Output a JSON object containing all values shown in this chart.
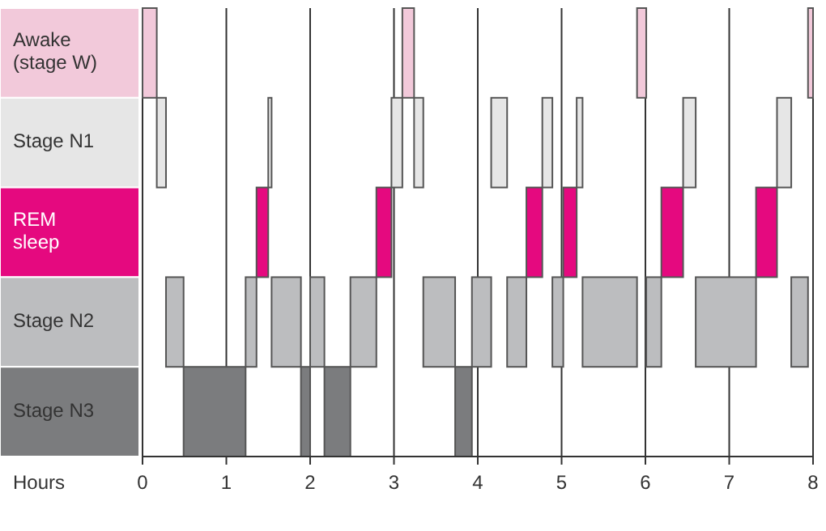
{
  "chart_data": {
    "type": "bar",
    "orientation": "horizontal",
    "xlabel": "Hours",
    "categories": [
      "Awake (stage W)",
      "Stage N1",
      "REM sleep",
      "Stage N2",
      "Stage N3"
    ],
    "series": [
      {
        "color": "#f2c9da",
        "values": [
          0.17,
          null,
          null,
          null,
          null
        ],
        "base": [
          0,
          null,
          null,
          null,
          null
        ]
      },
      {
        "color": "#e6e6e6",
        "values": [
          null,
          0.11,
          null,
          null,
          null
        ],
        "base": [
          null,
          0.17,
          null,
          null,
          null
        ]
      },
      {
        "color": "#bcbdbf",
        "values": [
          null,
          null,
          null,
          0.21,
          null
        ],
        "base": [
          null,
          null,
          null,
          0.28,
          null
        ]
      },
      {
        "color": "#7b7c7e",
        "values": [
          null,
          null,
          null,
          null,
          0.74
        ],
        "base": [
          null,
          null,
          null,
          null,
          0.49
        ]
      },
      {
        "color": "#bcbdbf",
        "values": [
          null,
          null,
          null,
          0.13,
          null
        ],
        "base": [
          null,
          null,
          null,
          1.23,
          null
        ]
      },
      {
        "color": "#e5097f",
        "values": [
          null,
          null,
          0.14,
          null,
          null
        ],
        "base": [
          null,
          null,
          1.36,
          null,
          null
        ]
      },
      {
        "color": "#e6e6e6",
        "values": [
          null,
          0.04,
          null,
          null,
          null
        ],
        "base": [
          null,
          1.5,
          null,
          null,
          null
        ]
      },
      {
        "color": "#bcbdbf",
        "values": [
          null,
          null,
          null,
          0.35,
          null
        ],
        "base": [
          null,
          null,
          null,
          1.54,
          null
        ]
      },
      {
        "color": "#7b7c7e",
        "values": [
          null,
          null,
          null,
          null,
          0.11
        ],
        "base": [
          null,
          null,
          null,
          null,
          1.89
        ]
      },
      {
        "color": "#bcbdbf",
        "values": [
          null,
          null,
          null,
          0.17,
          null
        ],
        "base": [
          null,
          null,
          null,
          2.0,
          null
        ]
      },
      {
        "color": "#7b7c7e",
        "values": [
          null,
          null,
          null,
          null,
          0.31
        ],
        "base": [
          null,
          null,
          null,
          null,
          2.17
        ]
      },
      {
        "color": "#bcbdbf",
        "values": [
          null,
          null,
          null,
          0.31,
          null
        ],
        "base": [
          null,
          null,
          null,
          2.48,
          null
        ]
      },
      {
        "color": "#e5097f",
        "values": [
          null,
          null,
          0.18,
          null,
          null
        ],
        "base": [
          null,
          null,
          2.79,
          null,
          null
        ]
      },
      {
        "color": "#e6e6e6",
        "values": [
          null,
          0.13,
          null,
          null,
          null
        ],
        "base": [
          null,
          2.97,
          null,
          null,
          null
        ]
      },
      {
        "color": "#f2c9da",
        "values": [
          0.14,
          null,
          null,
          null,
          null
        ],
        "base": [
          3.1,
          null,
          null,
          null,
          null
        ]
      },
      {
        "color": "#e6e6e6",
        "values": [
          null,
          0.11,
          null,
          null,
          null
        ],
        "base": [
          null,
          3.24,
          null,
          null,
          null
        ]
      },
      {
        "color": "#bcbdbf",
        "values": [
          null,
          null,
          null,
          0.38,
          null
        ],
        "base": [
          null,
          null,
          null,
          3.35,
          null
        ]
      },
      {
        "color": "#7b7c7e",
        "values": [
          null,
          null,
          null,
          null,
          0.2
        ],
        "base": [
          null,
          null,
          null,
          null,
          3.73
        ]
      },
      {
        "color": "#bcbdbf",
        "values": [
          null,
          null,
          null,
          0.23,
          null
        ],
        "base": [
          null,
          null,
          null,
          3.93,
          null
        ]
      },
      {
        "color": "#e6e6e6",
        "values": [
          null,
          0.19,
          null,
          null,
          null
        ],
        "base": [
          null,
          4.16,
          null,
          null,
          null
        ]
      },
      {
        "color": "#bcbdbf",
        "values": [
          null,
          null,
          null,
          0.23,
          null
        ],
        "base": [
          null,
          null,
          null,
          4.35,
          null
        ]
      },
      {
        "color": "#e5097f",
        "values": [
          null,
          null,
          0.19,
          null,
          null
        ],
        "base": [
          null,
          null,
          4.58,
          null,
          null
        ]
      },
      {
        "color": "#e6e6e6",
        "values": [
          null,
          0.12,
          null,
          null,
          null
        ],
        "base": [
          null,
          4.77,
          null,
          null,
          null
        ]
      },
      {
        "color": "#bcbdbf",
        "values": [
          null,
          null,
          null,
          0.13,
          null
        ],
        "base": [
          null,
          null,
          null,
          4.89,
          null
        ]
      },
      {
        "color": "#e5097f",
        "values": [
          null,
          null,
          0.16,
          null,
          null
        ],
        "base": [
          null,
          null,
          5.02,
          null,
          null
        ]
      },
      {
        "color": "#e6e6e6",
        "values": [
          null,
          0.07,
          null,
          null,
          null
        ],
        "base": [
          null,
          5.18,
          null,
          null,
          null
        ]
      },
      {
        "color": "#bcbdbf",
        "values": [
          null,
          null,
          null,
          0.65,
          null
        ],
        "base": [
          null,
          null,
          null,
          5.25,
          null
        ]
      },
      {
        "color": "#f2c9da",
        "values": [
          0.11,
          null,
          null,
          null,
          null
        ],
        "base": [
          5.9,
          null,
          null,
          null,
          null
        ]
      },
      {
        "color": "#bcbdbf",
        "values": [
          null,
          null,
          null,
          0.18,
          null
        ],
        "base": [
          null,
          null,
          null,
          6.01,
          null
        ]
      },
      {
        "color": "#e5097f",
        "values": [
          null,
          null,
          0.26,
          null,
          null
        ],
        "base": [
          null,
          null,
          6.19,
          null,
          null
        ]
      },
      {
        "color": "#e6e6e6",
        "values": [
          null,
          0.15,
          null,
          null,
          null
        ],
        "base": [
          null,
          6.45,
          null,
          null,
          null
        ]
      },
      {
        "color": "#bcbdbf",
        "values": [
          null,
          null,
          null,
          0.72,
          null
        ],
        "base": [
          null,
          null,
          null,
          6.6,
          null
        ]
      },
      {
        "color": "#e5097f",
        "values": [
          null,
          null,
          0.25,
          null,
          null
        ],
        "base": [
          null,
          null,
          7.32,
          null,
          null
        ]
      },
      {
        "color": "#e6e6e6",
        "values": [
          null,
          0.17,
          null,
          null,
          null
        ],
        "base": [
          null,
          7.57,
          null,
          null,
          null
        ]
      },
      {
        "color": "#bcbdbf",
        "values": [
          null,
          null,
          null,
          0.2,
          null
        ],
        "base": [
          null,
          null,
          null,
          7.74,
          null
        ]
      },
      {
        "color": "#f2c9da",
        "values": [
          0.06,
          null,
          null,
          null,
          null
        ],
        "base": [
          7.94,
          null,
          null,
          null,
          null
        ]
      }
    ],
    "xlim": [
      0,
      8
    ],
    "xticks": [
      0,
      1,
      2,
      3,
      4,
      5,
      6,
      7,
      8
    ],
    "grid": "x"
  }
}
